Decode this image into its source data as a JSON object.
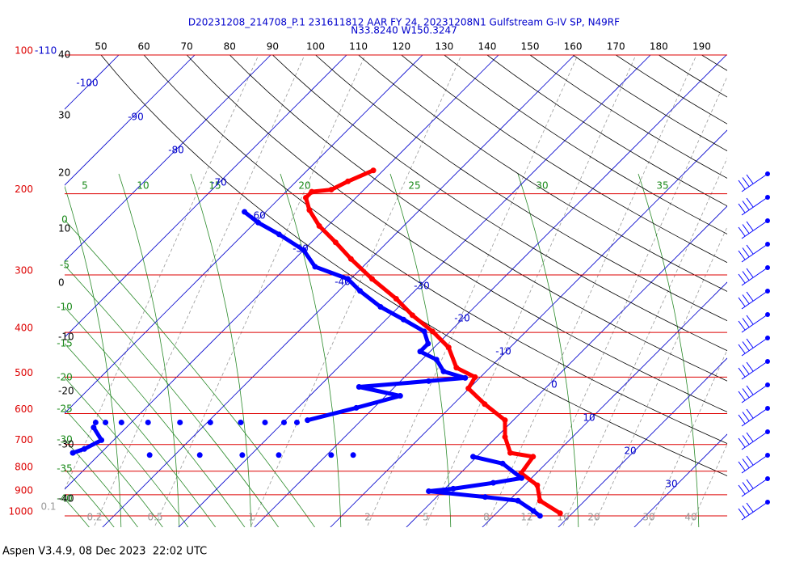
{
  "chart_data": {
    "type": "skewt",
    "title": "D20231208_214708_P.1 231611812 AAR FY 24, 20231208N1 Gulfstream G-IV SP, N49RF",
    "subtitle": "N33.8240 W150.3247",
    "footer": "Aspen V3.4.9, 08 Dec 2023  22:02 UTC",
    "ylim": [
      100,
      1000
    ],
    "yticks": [
      100,
      200,
      300,
      400,
      500,
      600,
      700,
      800,
      900,
      1000
    ],
    "grid": true,
    "grid_color": "#dd0000",
    "isotherm_labels": [
      -110,
      -100,
      -90,
      -80,
      -70,
      -60,
      -50,
      -40,
      -30,
      -20,
      -10,
      0,
      10,
      20,
      30
    ],
    "theta_labels": [
      50,
      60,
      70,
      80,
      90,
      100,
      110,
      120,
      130,
      140,
      150,
      160,
      170,
      180,
      190
    ],
    "left_labels": [
      40,
      30,
      20,
      10,
      0,
      -10,
      -20,
      -30,
      -40
    ],
    "moist_labels_left": [
      0,
      -5,
      -10,
      -15,
      -20,
      -25,
      -30,
      -35,
      -40
    ],
    "moist_labels_top": [
      5,
      10,
      15,
      20,
      25,
      30,
      35
    ],
    "mixing_labels": [
      0.1,
      0.2,
      0.5,
      1,
      2,
      5,
      8,
      12,
      16,
      20,
      30,
      40
    ],
    "series": [
      {
        "color": "#ff0000",
        "x": [
          987,
          927,
          858,
          808,
          744,
          730,
          674,
          620,
          572,
          529,
          500,
          477,
          431,
          398,
          367,
          338,
          306,
          277,
          255,
          235,
          217,
          204,
          198,
          196,
          188,
          178
        ],
        "values": [
          18.4,
          14.1,
          11.7,
          8.0,
          7.4,
          3.9,
          1.1,
          -1.1,
          -5.9,
          -10.1,
          -10.7,
          -14.4,
          -18.1,
          -22.3,
          -27.1,
          -31.4,
          -37.2,
          -42.6,
          -46.8,
          -51.1,
          -54.5,
          -56.6,
          -56.6,
          -54.3,
          -53.2,
          -51.3
        ]
      },
      {
        "color": "#0000ff",
        "x": [
          219,
          231,
          245,
          265,
          288,
          306,
          325,
          352,
          375,
          398,
          423,
          440,
          458,
          486,
          502,
          510,
          525,
          549,
          583,
          620,
          null,
          744,
          770,
          828,
          848,
          873,
          884,
          910,
          927,
          976,
          1000,
          null,
          627,
          null,
          627,
          null,
          627,
          null,
          627,
          null,
          627,
          null,
          627,
          null,
          627,
          null,
          627,
          null,
          627,
          null,
          627,
          null,
          738,
          null,
          738,
          null,
          738,
          null,
          738,
          null,
          738,
          null,
          738,
          null,
          643,
          685,
          716,
          730
        ],
        "values": [
          -62.8,
          -59.6,
          -55.3,
          -50.0,
          -46.3,
          -40.4,
          -37.2,
          -32.4,
          -27.7,
          -23.4,
          -21.3,
          -21.3,
          -18.1,
          -15.6,
          -11.9,
          -16.3,
          -24.7,
          -18.1,
          -22.3,
          -27.1,
          null,
          -0.5,
          4.3,
          8.7,
          5.6,
          1.1,
          -1.8,
          6.4,
          11.2,
          14.6,
          16.1,
          null,
          -54.7,
          null,
          -53.4,
          null,
          -51.3,
          null,
          -47.8,
          null,
          -43.6,
          null,
          -39.6,
          null,
          -35.6,
          null,
          -32.4,
          null,
          -29.9,
          null,
          -28.2,
          null,
          -43.3,
          null,
          -36.7,
          null,
          -31.1,
          null,
          -26.3,
          null,
          -19.4,
          null,
          -16.5,
          null,
          -54.3,
          -51.6,
          -52.7,
          -53.7
        ]
      }
    ]
  }
}
